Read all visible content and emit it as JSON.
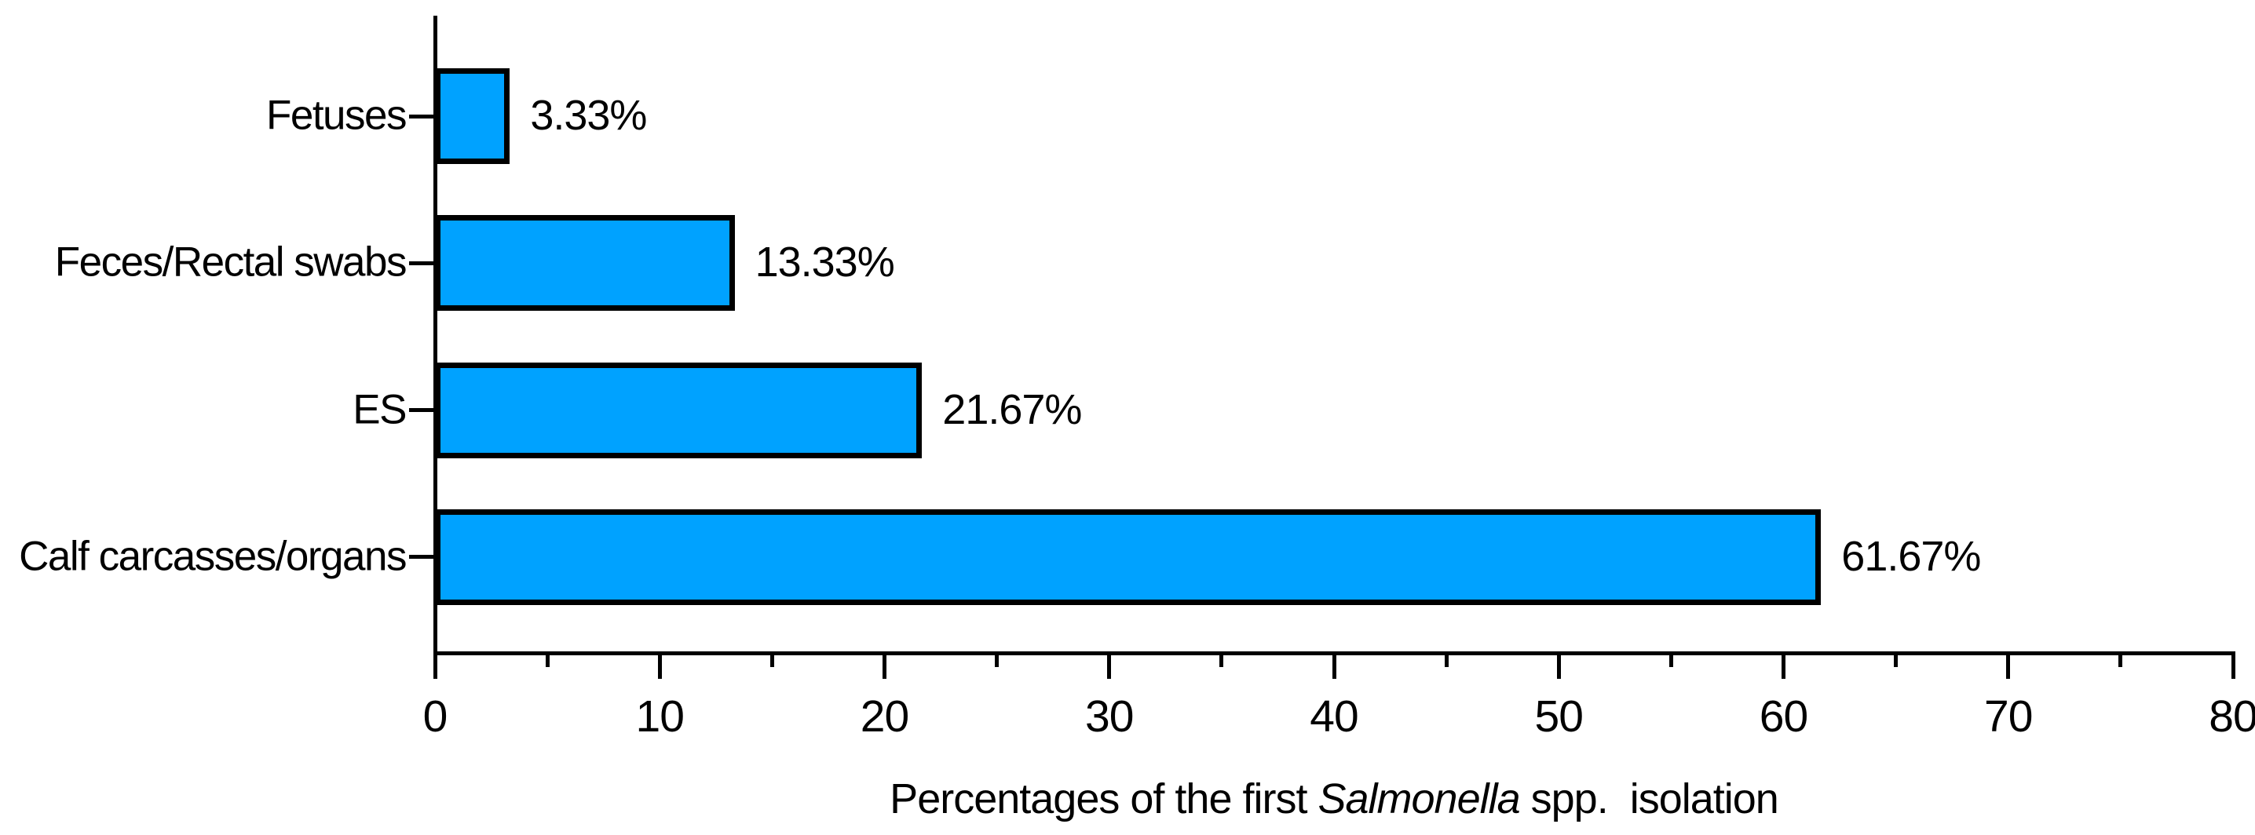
{
  "chart_data": {
    "type": "bar",
    "orientation": "horizontal",
    "title": "",
    "categories": [
      "Fetuses",
      "Feces/Rectal swabs",
      "ES",
      "Calf carcasses/organs"
    ],
    "values": [
      3.33,
      13.33,
      21.67,
      61.67
    ],
    "value_labels": [
      "3.33%",
      "13.33%",
      "21.67%",
      "61.67%"
    ],
    "xlabel": "Percentages of the first Salmonella spp.  isolation",
    "xlabel_parts": {
      "prefix": "Percentages of the first ",
      "italic": "Salmonella",
      "suffix": " spp.  isolation"
    },
    "xlim": [
      0,
      80
    ],
    "x_major_ticks": [
      "0",
      "10",
      "20",
      "30",
      "40",
      "50",
      "60",
      "70",
      "80"
    ],
    "x_major_tick_step": 10,
    "x_minor_tick_step": 5,
    "grid": false,
    "legend": false,
    "colors": {
      "bar_fill": "#00A2FF",
      "bar_border": "#000000",
      "axis": "#000000",
      "text": "#000000",
      "background": "#ffffff"
    }
  }
}
